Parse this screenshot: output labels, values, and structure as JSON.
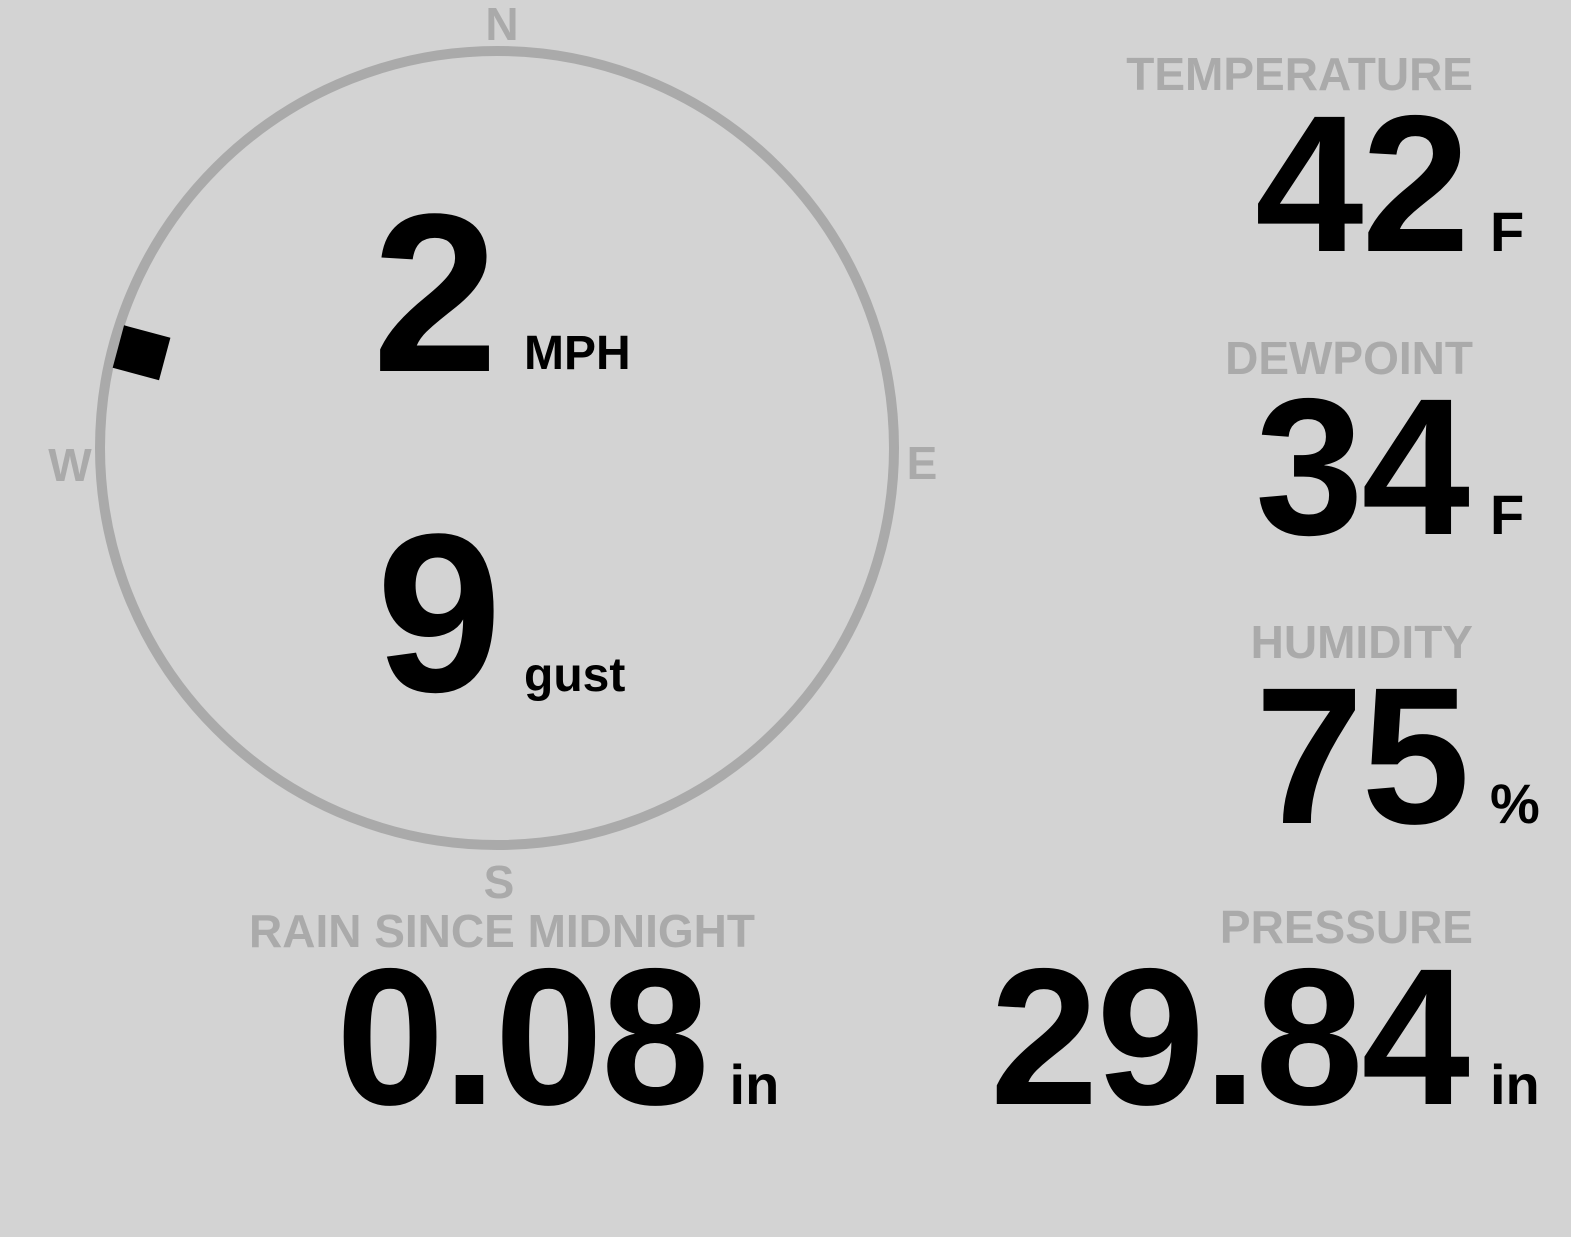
{
  "wind": {
    "speed": "2",
    "speed_unit": "MPH",
    "gust": "9",
    "gust_unit": "gust",
    "direction_degrees": 285,
    "compass": {
      "n": "N",
      "e": "E",
      "s": "S",
      "w": "W"
    }
  },
  "temperature": {
    "label": "TEMPERATURE",
    "value": "42",
    "unit": "F"
  },
  "dewpoint": {
    "label": "DEWPOINT",
    "value": "34",
    "unit": "F"
  },
  "humidity": {
    "label": "HUMIDITY",
    "value": "75",
    "unit": "%"
  },
  "rain": {
    "label": "RAIN SINCE MIDNIGHT",
    "value": "0.08",
    "unit": "in"
  },
  "pressure": {
    "label": "PRESSURE",
    "value": "29.84",
    "unit": "in"
  },
  "colors": {
    "background": "#d3d3d3",
    "label": "#aaaaaa",
    "value": "#000000",
    "compass_ring": "#aaaaaa"
  }
}
